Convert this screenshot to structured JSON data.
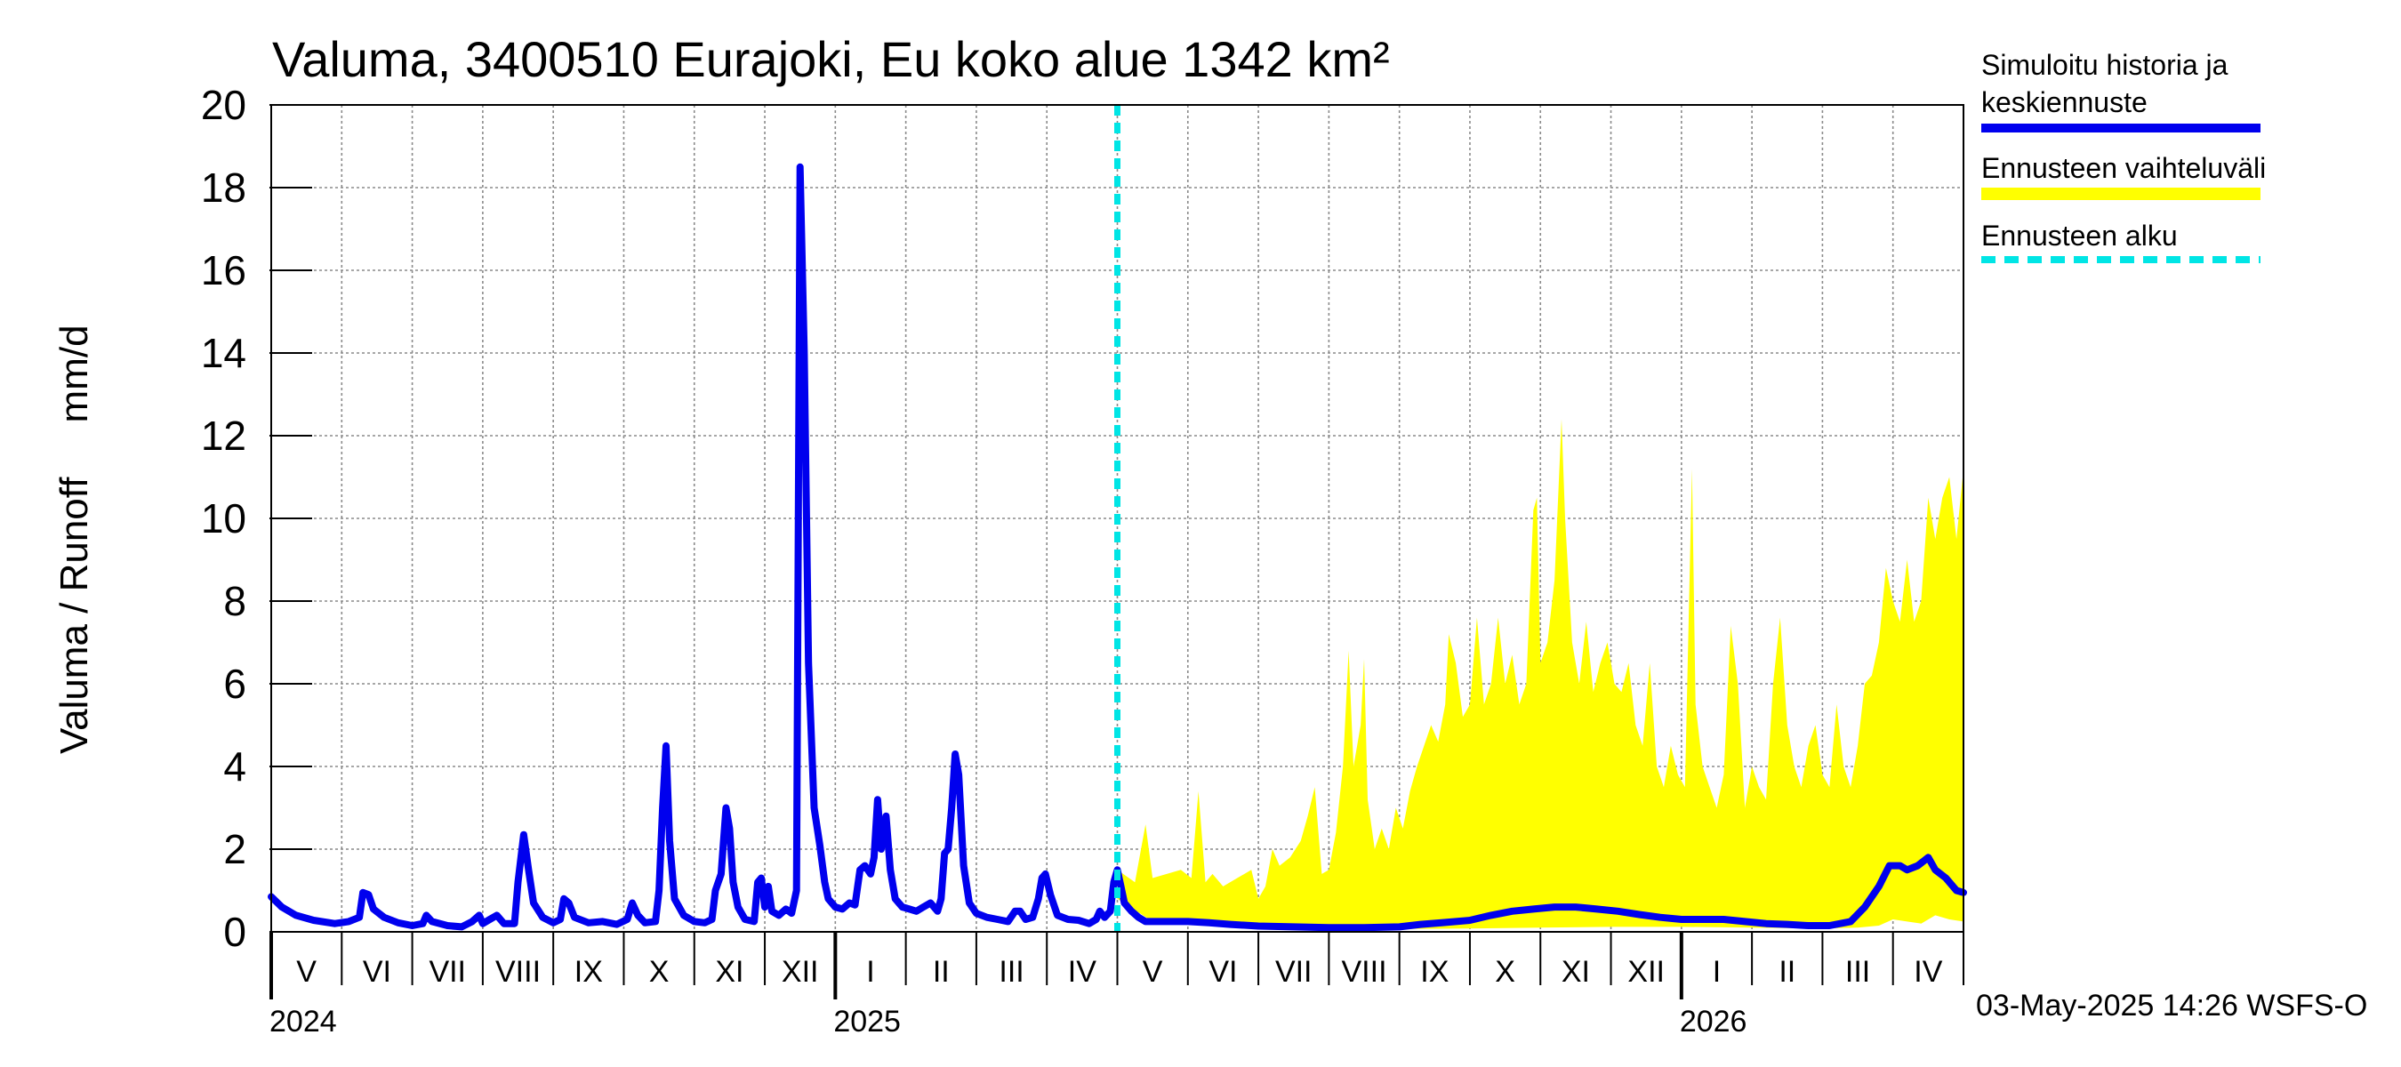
{
  "chart_data": {
    "type": "line",
    "title": "Valuma, 3400510 Eurajoki, Eu koko alue 1342 km²",
    "ylabel": "Valuma / Runoff     mm/d",
    "ylim": [
      0,
      20
    ],
    "yticks": [
      0,
      2,
      4,
      6,
      8,
      10,
      12,
      14,
      16,
      18,
      20
    ],
    "grid": true,
    "legend_position": "right",
    "forecast_start_month": 12.0,
    "month_labels": [
      "V",
      "VI",
      "VII",
      "VIII",
      "IX",
      "X",
      "XI",
      "XII",
      "I",
      "II",
      "III",
      "IV",
      "V",
      "VI",
      "VII",
      "VIII",
      "IX",
      "X",
      "XI",
      "XII",
      "I",
      "II",
      "III",
      "IV"
    ],
    "year_labels": [
      {
        "label": "2024",
        "month": 0
      },
      {
        "label": "2025",
        "month": 8
      },
      {
        "label": "2026",
        "month": 20
      }
    ],
    "series": [
      {
        "name": "Simuloitu historia ja keskiennuste",
        "color": "#0000ee",
        "points": [
          [
            0.0,
            0.85
          ],
          [
            0.15,
            0.6
          ],
          [
            0.35,
            0.4
          ],
          [
            0.6,
            0.28
          ],
          [
            0.9,
            0.2
          ],
          [
            1.1,
            0.25
          ],
          [
            1.25,
            0.35
          ],
          [
            1.3,
            0.95
          ],
          [
            1.38,
            0.9
          ],
          [
            1.45,
            0.55
          ],
          [
            1.6,
            0.35
          ],
          [
            1.8,
            0.22
          ],
          [
            2.0,
            0.15
          ],
          [
            2.15,
            0.2
          ],
          [
            2.2,
            0.4
          ],
          [
            2.28,
            0.25
          ],
          [
            2.5,
            0.15
          ],
          [
            2.7,
            0.12
          ],
          [
            2.85,
            0.25
          ],
          [
            2.95,
            0.4
          ],
          [
            3.0,
            0.2
          ],
          [
            3.1,
            0.3
          ],
          [
            3.2,
            0.4
          ],
          [
            3.3,
            0.2
          ],
          [
            3.45,
            0.2
          ],
          [
            3.5,
            1.2
          ],
          [
            3.58,
            2.35
          ],
          [
            3.65,
            1.5
          ],
          [
            3.72,
            0.7
          ],
          [
            3.85,
            0.35
          ],
          [
            4.0,
            0.22
          ],
          [
            4.1,
            0.3
          ],
          [
            4.15,
            0.8
          ],
          [
            4.22,
            0.7
          ],
          [
            4.3,
            0.35
          ],
          [
            4.5,
            0.22
          ],
          [
            4.7,
            0.25
          ],
          [
            4.9,
            0.18
          ],
          [
            5.05,
            0.3
          ],
          [
            5.12,
            0.7
          ],
          [
            5.2,
            0.4
          ],
          [
            5.3,
            0.22
          ],
          [
            5.45,
            0.25
          ],
          [
            5.5,
            1.0
          ],
          [
            5.55,
            3.0
          ],
          [
            5.6,
            4.5
          ],
          [
            5.65,
            2.2
          ],
          [
            5.72,
            0.8
          ],
          [
            5.85,
            0.4
          ],
          [
            6.0,
            0.25
          ],
          [
            6.15,
            0.22
          ],
          [
            6.25,
            0.3
          ],
          [
            6.3,
            1.0
          ],
          [
            6.38,
            1.4
          ],
          [
            6.45,
            3.0
          ],
          [
            6.5,
            2.5
          ],
          [
            6.55,
            1.2
          ],
          [
            6.62,
            0.6
          ],
          [
            6.72,
            0.3
          ],
          [
            6.85,
            0.25
          ],
          [
            6.9,
            1.2
          ],
          [
            6.95,
            1.3
          ],
          [
            7.0,
            0.6
          ],
          [
            7.05,
            1.1
          ],
          [
            7.1,
            0.5
          ],
          [
            7.2,
            0.4
          ],
          [
            7.3,
            0.55
          ],
          [
            7.38,
            0.45
          ],
          [
            7.45,
            1.0
          ],
          [
            7.5,
            18.5
          ],
          [
            7.56,
            14.0
          ],
          [
            7.62,
            6.5
          ],
          [
            7.7,
            3.0
          ],
          [
            7.78,
            2.1
          ],
          [
            7.85,
            1.2
          ],
          [
            7.9,
            0.8
          ],
          [
            8.0,
            0.6
          ],
          [
            8.1,
            0.55
          ],
          [
            8.2,
            0.7
          ],
          [
            8.28,
            0.65
          ],
          [
            8.35,
            1.5
          ],
          [
            8.42,
            1.6
          ],
          [
            8.5,
            1.4
          ],
          [
            8.55,
            1.8
          ],
          [
            8.6,
            3.2
          ],
          [
            8.65,
            2.0
          ],
          [
            8.72,
            2.8
          ],
          [
            8.78,
            1.5
          ],
          [
            8.85,
            0.8
          ],
          [
            8.95,
            0.6
          ],
          [
            9.05,
            0.55
          ],
          [
            9.15,
            0.5
          ],
          [
            9.25,
            0.6
          ],
          [
            9.35,
            0.7
          ],
          [
            9.45,
            0.5
          ],
          [
            9.5,
            0.8
          ],
          [
            9.55,
            1.9
          ],
          [
            9.6,
            2.0
          ],
          [
            9.65,
            3.0
          ],
          [
            9.7,
            4.3
          ],
          [
            9.75,
            3.8
          ],
          [
            9.82,
            1.6
          ],
          [
            9.9,
            0.7
          ],
          [
            10.0,
            0.45
          ],
          [
            10.15,
            0.35
          ],
          [
            10.3,
            0.3
          ],
          [
            10.45,
            0.25
          ],
          [
            10.55,
            0.5
          ],
          [
            10.62,
            0.5
          ],
          [
            10.7,
            0.3
          ],
          [
            10.8,
            0.35
          ],
          [
            10.88,
            0.8
          ],
          [
            10.93,
            1.3
          ],
          [
            10.98,
            1.4
          ],
          [
            11.05,
            0.9
          ],
          [
            11.15,
            0.4
          ],
          [
            11.3,
            0.3
          ],
          [
            11.45,
            0.28
          ],
          [
            11.6,
            0.2
          ],
          [
            11.7,
            0.3
          ],
          [
            11.75,
            0.5
          ],
          [
            11.82,
            0.35
          ],
          [
            11.9,
            0.5
          ],
          [
            11.95,
            1.2
          ],
          [
            12.0,
            1.5
          ],
          [
            12.05,
            1.1
          ],
          [
            12.1,
            0.7
          ],
          [
            12.2,
            0.5
          ],
          [
            12.3,
            0.35
          ],
          [
            12.4,
            0.25
          ],
          [
            12.7,
            0.25
          ],
          [
            13.0,
            0.25
          ],
          [
            13.3,
            0.22
          ],
          [
            13.6,
            0.18
          ],
          [
            14.0,
            0.14
          ],
          [
            14.5,
            0.12
          ],
          [
            15.0,
            0.1
          ],
          [
            15.5,
            0.1
          ],
          [
            16.0,
            0.12
          ],
          [
            16.3,
            0.18
          ],
          [
            16.6,
            0.22
          ],
          [
            17.0,
            0.28
          ],
          [
            17.3,
            0.4
          ],
          [
            17.6,
            0.5
          ],
          [
            17.9,
            0.55
          ],
          [
            18.2,
            0.6
          ],
          [
            18.5,
            0.6
          ],
          [
            18.8,
            0.55
          ],
          [
            19.1,
            0.5
          ],
          [
            19.4,
            0.42
          ],
          [
            19.7,
            0.35
          ],
          [
            20.0,
            0.3
          ],
          [
            20.3,
            0.3
          ],
          [
            20.6,
            0.3
          ],
          [
            20.9,
            0.25
          ],
          [
            21.2,
            0.2
          ],
          [
            21.5,
            0.18
          ],
          [
            21.8,
            0.15
          ],
          [
            22.1,
            0.15
          ],
          [
            22.4,
            0.25
          ],
          [
            22.6,
            0.6
          ],
          [
            22.8,
            1.1
          ],
          [
            22.95,
            1.6
          ],
          [
            23.1,
            1.6
          ],
          [
            23.2,
            1.5
          ],
          [
            23.35,
            1.6
          ],
          [
            23.5,
            1.8
          ],
          [
            23.6,
            1.5
          ],
          [
            23.75,
            1.3
          ],
          [
            23.9,
            1.0
          ],
          [
            24.0,
            0.95
          ]
        ]
      },
      {
        "name": "Ennusteen vaihteluväli",
        "color": "#ffff00",
        "upper": [
          [
            12.0,
            1.5
          ],
          [
            12.25,
            1.2
          ],
          [
            12.4,
            2.6
          ],
          [
            12.5,
            1.3
          ],
          [
            12.7,
            1.4
          ],
          [
            12.9,
            1.5
          ],
          [
            13.05,
            1.3
          ],
          [
            13.15,
            3.4
          ],
          [
            13.25,
            1.2
          ],
          [
            13.35,
            1.4
          ],
          [
            13.5,
            1.1
          ],
          [
            13.7,
            1.3
          ],
          [
            13.9,
            1.5
          ],
          [
            14.0,
            0.8
          ],
          [
            14.1,
            1.1
          ],
          [
            14.2,
            2.0
          ],
          [
            14.3,
            1.6
          ],
          [
            14.45,
            1.8
          ],
          [
            14.6,
            2.2
          ],
          [
            14.7,
            2.8
          ],
          [
            14.8,
            3.5
          ],
          [
            14.9,
            1.4
          ],
          [
            15.0,
            1.5
          ],
          [
            15.1,
            2.4
          ],
          [
            15.2,
            4.0
          ],
          [
            15.28,
            6.8
          ],
          [
            15.35,
            4.0
          ],
          [
            15.45,
            5.0
          ],
          [
            15.5,
            6.6
          ],
          [
            15.55,
            3.2
          ],
          [
            15.65,
            2.0
          ],
          [
            15.75,
            2.5
          ],
          [
            15.85,
            2.0
          ],
          [
            15.95,
            3.0
          ],
          [
            16.05,
            2.5
          ],
          [
            16.15,
            3.4
          ],
          [
            16.25,
            4.0
          ],
          [
            16.35,
            4.5
          ],
          [
            16.45,
            5.0
          ],
          [
            16.55,
            4.6
          ],
          [
            16.65,
            5.5
          ],
          [
            16.7,
            7.2
          ],
          [
            16.8,
            6.5
          ],
          [
            16.9,
            5.2
          ],
          [
            17.0,
            5.5
          ],
          [
            17.1,
            7.6
          ],
          [
            17.2,
            5.5
          ],
          [
            17.3,
            6.0
          ],
          [
            17.4,
            7.6
          ],
          [
            17.5,
            6.0
          ],
          [
            17.6,
            6.7
          ],
          [
            17.7,
            5.5
          ],
          [
            17.8,
            6.0
          ],
          [
            17.9,
            10.2
          ],
          [
            17.95,
            10.5
          ],
          [
            18.0,
            6.5
          ],
          [
            18.1,
            7.0
          ],
          [
            18.2,
            8.5
          ],
          [
            18.3,
            12.4
          ],
          [
            18.35,
            10.0
          ],
          [
            18.45,
            7.0
          ],
          [
            18.55,
            6.0
          ],
          [
            18.65,
            7.5
          ],
          [
            18.75,
            5.8
          ],
          [
            18.85,
            6.5
          ],
          [
            18.95,
            7.0
          ],
          [
            19.05,
            6.0
          ],
          [
            19.15,
            5.8
          ],
          [
            19.25,
            6.5
          ],
          [
            19.35,
            5.0
          ],
          [
            19.45,
            4.5
          ],
          [
            19.55,
            6.5
          ],
          [
            19.65,
            4.0
          ],
          [
            19.75,
            3.5
          ],
          [
            19.85,
            4.5
          ],
          [
            19.95,
            3.8
          ],
          [
            20.05,
            3.5
          ],
          [
            20.15,
            11.2
          ],
          [
            20.2,
            5.5
          ],
          [
            20.3,
            4.0
          ],
          [
            20.4,
            3.5
          ],
          [
            20.5,
            3.0
          ],
          [
            20.6,
            3.8
          ],
          [
            20.7,
            7.4
          ],
          [
            20.8,
            6.0
          ],
          [
            20.9,
            3.0
          ],
          [
            21.0,
            4.0
          ],
          [
            21.1,
            3.5
          ],
          [
            21.2,
            3.2
          ],
          [
            21.3,
            6.0
          ],
          [
            21.4,
            7.6
          ],
          [
            21.5,
            5.0
          ],
          [
            21.6,
            4.0
          ],
          [
            21.7,
            3.5
          ],
          [
            21.8,
            4.5
          ],
          [
            21.9,
            5.0
          ],
          [
            22.0,
            3.8
          ],
          [
            22.1,
            3.5
          ],
          [
            22.2,
            5.5
          ],
          [
            22.3,
            4.0
          ],
          [
            22.4,
            3.5
          ],
          [
            22.5,
            4.5
          ],
          [
            22.6,
            6.0
          ],
          [
            22.7,
            6.2
          ],
          [
            22.8,
            7.0
          ],
          [
            22.9,
            8.8
          ],
          [
            23.0,
            8.0
          ],
          [
            23.1,
            7.5
          ],
          [
            23.2,
            9.0
          ],
          [
            23.3,
            7.5
          ],
          [
            23.4,
            8.0
          ],
          [
            23.5,
            10.5
          ],
          [
            23.6,
            9.5
          ],
          [
            23.7,
            10.5
          ],
          [
            23.8,
            11.0
          ],
          [
            23.9,
            9.5
          ],
          [
            24.0,
            11.2
          ]
        ],
        "lower": [
          [
            12.0,
            0.8
          ],
          [
            12.5,
            0.25
          ],
          [
            13.0,
            0.2
          ],
          [
            14.0,
            0.12
          ],
          [
            15.0,
            0.08
          ],
          [
            16.0,
            0.07
          ],
          [
            17.0,
            0.08
          ],
          [
            18.0,
            0.1
          ],
          [
            19.0,
            0.12
          ],
          [
            20.0,
            0.12
          ],
          [
            21.0,
            0.1
          ],
          [
            22.0,
            0.08
          ],
          [
            22.5,
            0.1
          ],
          [
            22.8,
            0.15
          ],
          [
            23.0,
            0.3
          ],
          [
            23.2,
            0.25
          ],
          [
            23.4,
            0.2
          ],
          [
            23.6,
            0.4
          ],
          [
            23.8,
            0.3
          ],
          [
            24.0,
            0.25
          ]
        ]
      },
      {
        "name": "Ennusteen alku",
        "color": "#00e5e5"
      }
    ]
  },
  "legend": {
    "item1_line1": "Simuloitu historia ja",
    "item1_line2": "keskiennuste",
    "item2": "Ennusteen vaihteluväli",
    "item3": "Ennusteen alku"
  },
  "footer": "03-May-2025 14:26 WSFS-O"
}
